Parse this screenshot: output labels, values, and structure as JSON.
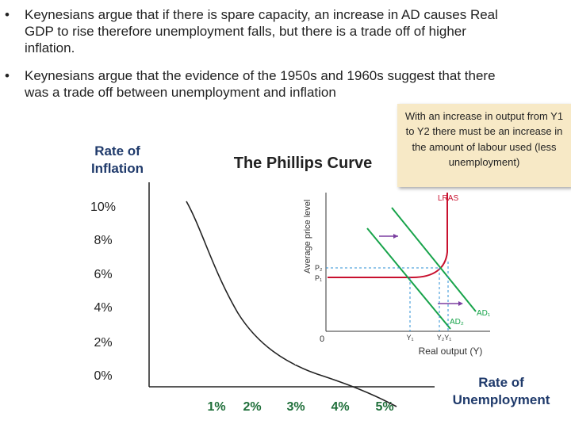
{
  "bullets": [
    "Keynesians argue that if there is spare capacity, an increase in AD causes Real GDP to rise therefore unemployment falls, but there is a trade off of higher inflation.",
    "Keynesians argue that the evidence of the 1950s and 1960s suggest that there was a trade off between unemployment and inflation"
  ],
  "phillips": {
    "title": "The Phillips Curve",
    "ylabel_line1": "Rate of",
    "ylabel_line2": "Inflation",
    "xlabel_line1": "Rate of",
    "xlabel_line2": "Unemployment",
    "y_ticks": [
      "10%",
      "8%",
      "6%",
      "4%",
      "2%",
      "0%"
    ],
    "x_ticks": [
      "1%",
      "2%",
      "3%",
      "4%",
      "5%"
    ]
  },
  "callout": "With an increase in output from Y1 to Y2 there must be an increase in the amount of labour used (less unemployment)",
  "inset": {
    "ylabel": "Average price level",
    "xlabel": "Real output (Y)",
    "origin": "0",
    "lras": "LRAS",
    "ad1": "AD₁",
    "ad2": "AD₂",
    "p2": "P₂",
    "p1": "P₁",
    "y1": "Y₁",
    "y2y1": "Y₂Y₁"
  },
  "colors": {
    "curve": "#222222",
    "axis": "#222222",
    "tick_label_green": "#1f6f3a",
    "axis_label_navy": "#1f3a6b",
    "inset_red": "#c8102e",
    "inset_green": "#17a34a",
    "inset_arrow": "#7b3fa0",
    "inset_dashed": "#2b8fd6",
    "callout_bg": "#f7e9c6"
  }
}
